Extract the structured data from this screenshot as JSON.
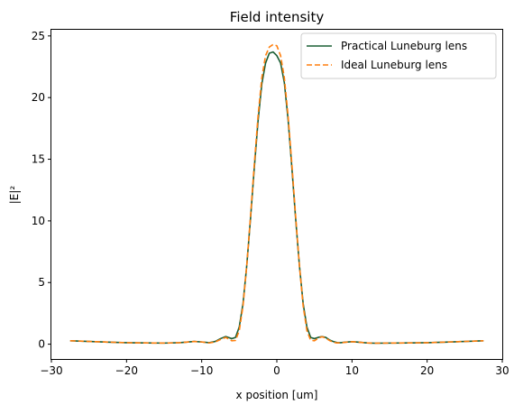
{
  "chart_data": {
    "type": "line",
    "title": "Field intensity",
    "xlabel": "x position [um]",
    "ylabel": "|E|²",
    "xlim": [
      -30,
      30
    ],
    "ylim": [
      -1.2,
      25.5
    ],
    "xticks": [
      -30,
      -20,
      -10,
      0,
      10,
      20,
      30
    ],
    "xtick_labels": [
      "−30",
      "−20",
      "−10",
      "0",
      "10",
      "20",
      "30"
    ],
    "yticks": [
      0,
      5,
      10,
      15,
      20,
      25
    ],
    "ytick_labels": [
      "0",
      "5",
      "10",
      "15",
      "20",
      "25"
    ],
    "grid": false,
    "legend_position": "top-right",
    "series": [
      {
        "name": "Practical Luneburg lens",
        "color": "#1a5e35",
        "style": "solid",
        "x": [
          -27.5,
          -25,
          -22.5,
          -20,
          -17.5,
          -15,
          -13,
          -12,
          -11,
          -10,
          -9,
          -8.2,
          -7.5,
          -6.8,
          -6,
          -5.5,
          -5,
          -4.5,
          -4,
          -3.5,
          -3,
          -2.5,
          -2,
          -1.5,
          -1,
          -0.5,
          0,
          0.5,
          1,
          1.5,
          2,
          2.5,
          3,
          3.5,
          4,
          4.5,
          5,
          5.5,
          6,
          6.5,
          7,
          7.5,
          8,
          8.5,
          9,
          10,
          11,
          12,
          13,
          15,
          17.5,
          20,
          22.5,
          25,
          27.5
        ],
        "y": [
          0.28,
          0.22,
          0.17,
          0.12,
          0.1,
          0.09,
          0.12,
          0.17,
          0.22,
          0.18,
          0.12,
          0.22,
          0.45,
          0.62,
          0.45,
          0.55,
          1.4,
          3.3,
          6.4,
          10.2,
          14.3,
          18.1,
          21.1,
          22.8,
          23.6,
          23.7,
          23.4,
          22.8,
          21.2,
          18.2,
          14.3,
          10.2,
          6.4,
          3.3,
          1.4,
          0.55,
          0.45,
          0.55,
          0.62,
          0.55,
          0.35,
          0.22,
          0.13,
          0.12,
          0.16,
          0.2,
          0.16,
          0.1,
          0.08,
          0.09,
          0.1,
          0.12,
          0.17,
          0.22,
          0.28
        ]
      },
      {
        "name": "Ideal Luneburg lens",
        "color": "#ff7f0e",
        "style": "dashed",
        "x": [
          -27.5,
          -25,
          -22.5,
          -20,
          -17.5,
          -15,
          -13,
          -12,
          -11,
          -10,
          -9,
          -8.2,
          -7.5,
          -6.8,
          -6,
          -5.5,
          -5,
          -4.5,
          -4,
          -3.5,
          -3,
          -2.5,
          -2,
          -1.5,
          -1,
          -0.5,
          0,
          0.5,
          1,
          1.5,
          2,
          2.5,
          3,
          3.5,
          4,
          4.5,
          5,
          5.5,
          6,
          6.5,
          7,
          7.5,
          8,
          8.5,
          9,
          10,
          11,
          12,
          13,
          15,
          17.5,
          20,
          22.5,
          25,
          27.5
        ],
        "y": [
          0.28,
          0.22,
          0.17,
          0.12,
          0.1,
          0.09,
          0.12,
          0.17,
          0.22,
          0.18,
          0.1,
          0.18,
          0.38,
          0.55,
          0.28,
          0.3,
          1.1,
          3.1,
          6.4,
          10.4,
          14.6,
          18.5,
          21.6,
          23.4,
          24.1,
          24.3,
          24.2,
          23.4,
          21.6,
          18.5,
          14.6,
          10.4,
          6.4,
          3.1,
          1.1,
          0.32,
          0.28,
          0.48,
          0.6,
          0.5,
          0.3,
          0.16,
          0.1,
          0.1,
          0.15,
          0.2,
          0.16,
          0.1,
          0.08,
          0.09,
          0.1,
          0.12,
          0.17,
          0.22,
          0.28
        ]
      }
    ]
  }
}
